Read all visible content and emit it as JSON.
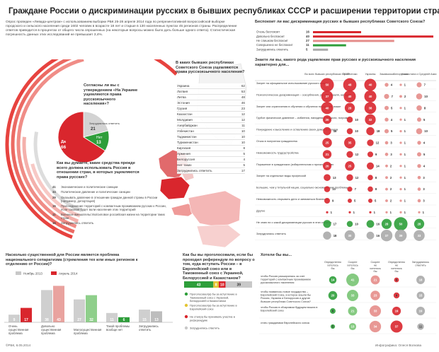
{
  "title": "Граждане России о дискриминации русских в бывших республиках СССР и расширении территории страны",
  "intro": "Опрос проведен «Левада-центром» с использованием выборки РБК 25-28 апреля 2014 года по репрезентативной всероссийской выборке городского и сельского населения среди 1602 человек в возрасте 18 лет и старше в 130 населенных пунктах 45 регионов страны. Распределение ответов приводится в процентах от общего числа опрошенных (на некоторые вопросы можно было дать больше одного ответа). Статистическая погрешность данных этих исследований не превышает 3,4%.",
  "colors": {
    "red": "#d9262d",
    "green": "#2e9e3a",
    "lightred": "#f0a9a6",
    "gray": "#cccccc",
    "darkgray": "#999999"
  },
  "ukraine_q": {
    "title": "Согласны ли вы с утверждением «На Украине ущемляются права русскоязычного населения»?",
    "labels": {
      "yes": "Да",
      "no": "Нет",
      "dk": "Затруднились ответить"
    },
    "values": {
      "yes": 66,
      "no": 13,
      "dk": 21
    }
  },
  "means_q": {
    "title": "Как вы думаете, какие средства прежде всего должна использовать Россия в отношении стран, в которых ущемляются права русских?",
    "items": [
      {
        "value": "41",
        "label": "Экономические и политические санкции"
      },
      {
        "value": "34",
        "label": "Политические давление и политические санкции"
      },
      {
        "value": "29",
        "label": "Оказывать давление в отношении граждан данной страны в России (например, депортация)"
      },
      {
        "value": "15",
        "label": "Присоединение территорий с компактным проживанием русских к России, если таковая будет воли населения этих территорий"
      },
      {
        "value": "11",
        "label": "Военные вмешательство/силовое российская жизни на территории таких стран"
      },
      {
        "value": "16",
        "label": "Затруднились ответить"
      }
    ]
  },
  "countries_q": {
    "title": "В каких бывших республиках Советского Союза ущемляются права русскоязычного населения?",
    "rows": [
      {
        "name": "Украина",
        "value": "62"
      },
      {
        "name": "Латвия",
        "value": "53"
      },
      {
        "name": "Литва",
        "value": "48"
      },
      {
        "name": "Эстония",
        "value": "46"
      },
      {
        "name": "Грузия",
        "value": "23"
      },
      {
        "name": "Казахстан",
        "value": "12"
      },
      {
        "name": "Молдавия",
        "value": "12"
      },
      {
        "name": "Азербайджан",
        "value": "11"
      },
      {
        "name": "Узбекистан",
        "value": "10"
      },
      {
        "name": "Таджикистан",
        "value": "10"
      },
      {
        "name": "Туркменистан",
        "value": "10"
      },
      {
        "name": "Киргизия",
        "value": "8"
      },
      {
        "name": "Армения",
        "value": "5"
      },
      {
        "name": "Белоруссия",
        "value": "4"
      },
      {
        "name": "Нет таких",
        "value": "5"
      },
      {
        "name": "Затруднились ответить",
        "value": "17"
      }
    ]
  },
  "worry_q": {
    "title": "Беспокоит ли вас дискриминация русских в бывших республиках Советского Союза?",
    "rows": [
      {
        "label": "Очень беспокоит",
        "value": "16"
      },
      {
        "label": "Довольно беспокоит",
        "value": "40"
      },
      {
        "label": "Не слишком беспокоит",
        "value": "27"
      },
      {
        "label": "Совершенно не беспокоит",
        "value": "11"
      },
      {
        "label": "Затруднились ответить",
        "value": "5"
      }
    ]
  },
  "matrix_q": {
    "title": "Знаете ли вы, какого рода ущемление прав русских и русскоязычного населения характерно для...",
    "columns": [
      "Во всех бывших республиках СССР",
      "Прибалтики",
      "Украины",
      "Закавказья",
      "Белоруссии",
      "Казахстана и Средней Азии"
    ],
    "rows": [
      {
        "label": "Запрет на официальное использование русского языка",
        "values": [
          50,
          48,
          40,
          4,
          1,
          7
        ]
      },
      {
        "label": "Психологическое дискриминация – оскорбления, угрозы, травля, нападки",
        "values": [
          37,
          40,
          40,
          7,
          2,
          10
        ]
      },
      {
        "label": "Запрет или ограничения в обучении и обучении на русском языке",
        "values": [
          40,
          28,
          38,
          5,
          1,
          8
        ]
      },
      {
        "label": "Грубое физическое давление – избиения, нападения, поджоги, погромы",
        "values": [
          20,
          10,
          32,
          4,
          1,
          5
        ]
      },
      {
        "label": "Понуждение к выселению и оставлению своих домов и городов",
        "values": [
          18,
          10,
          18,
          5,
          1,
          10
        ]
      },
      {
        "label": "Отказ в получении гражданства",
        "values": [
          25,
          35,
          12,
          3,
          1,
          4
        ]
      },
      {
        "label": "Невозможность трудоустройства",
        "values": [
          21,
          12,
          9,
          3,
          1,
          5
        ]
      },
      {
        "label": "Поражение в гражданских (избирательном и прочих) правах",
        "values": [
          20,
          25,
          14,
          2,
          1,
          4
        ]
      },
      {
        "label": "Запрет на отдельные виды профессий",
        "values": [
          13,
          12,
          8,
          2,
          1,
          3
        ]
      },
      {
        "label": "Большие, чем у титульной нации, социально-экономические проблемы",
        "values": [
          10,
          7,
          8,
          2,
          1,
          3
        ]
      },
      {
        "label": "Невозможность открывать дело и заниматься бизнесом",
        "values": [
          9,
          5,
          5,
          2,
          1,
          3
        ]
      },
      {
        "label": "Другое",
        "values": [
          1,
          1,
          1,
          1,
          1,
          1
        ]
      },
      {
        "label": "Не знаю ни о какой дискриминации русских в этих странах",
        "values": [
          17,
          10,
          16,
          28,
          50,
          28
        ]
      },
      {
        "label": "Затруднились ответить",
        "values": [
          18,
          30,
          16,
          37,
          39,
          33
        ]
      }
    ]
  },
  "separatism_q": {
    "title": "Насколько существенной для России является проблема национального сепаратизма (стремления тех или иных регионов к отделению от России)?",
    "legend": [
      "Ноябрь 2013",
      "Апрель 2014"
    ],
    "categories": [
      "Очень существенная проблема",
      "Довольно существенная проблема",
      "Малосущественная проблема",
      "Такой проблемы вообще нет",
      "Затруднились ответить"
    ],
    "series": [
      {
        "name": "Ноябрь 2013",
        "values": [
          9,
          38,
          27,
          11,
          15
        ]
      },
      {
        "name": "Апрель 2014",
        "values": [
          17,
          43,
          32,
          6,
          13
        ]
      }
    ],
    "ymax": 50
  },
  "referendum_q": {
    "title": "Как бы вы проголосовали, если бы проходил референдум по вопросу о том, куда вступать России – в Европейский союз или в Таможенный союз с Украиной, Белоруссией и Казахстаном?",
    "values": [
      "43",
      "8",
      "10",
      "39"
    ],
    "items": [
      {
        "label": "Проголосовал(а) бы за вступление в Таможенный союз с Украиной, Белоруссией и Казахстаном",
        "value": "43"
      },
      {
        "label": "Проголосовал(а) бы за вступление в Европейский союз",
        "value": "8"
      },
      {
        "label": "Не стал(а) бы принимать участие в референдуме",
        "value": "10"
      },
      {
        "label": "Затруднились ответить",
        "value": "39"
      }
    ]
  },
  "want_q": {
    "title": "Хотели бы вы...",
    "columns": [
      "Определенно хотелось бы",
      "Скорее хотелось бы",
      "Скорее не хотелось бы",
      "Определенно не хотелось бы",
      "Затруднились ответить"
    ],
    "rows": [
      {
        "label": "чтобы Россия расширилась за счет территорий с компактным проживанием русскоязычного населения",
        "values": [
          14,
          41,
          21,
          6,
          18
        ]
      },
      {
        "label": "чтобы появилось новое государство – Европейский Союз, в которое вошли бы Россия, Украина и Белоруссия и другие бывшие республики Советского Союза?",
        "values": [
          20,
          33,
          23,
          9,
          15
        ]
      },
      {
        "label": "чтобы Россия в обозримом будущем вошла в Европейский союз",
        "values": [
          8,
          21,
          33,
          19,
          19
        ]
      },
      {
        "label": "стать гражданами Европейского союза",
        "values": [
          5,
          13,
          34,
          37,
          11
        ]
      }
    ]
  },
  "footer_left": "©РБК, 6.05.2014",
  "footer_right": "Инфографика: Олеся Волкова"
}
